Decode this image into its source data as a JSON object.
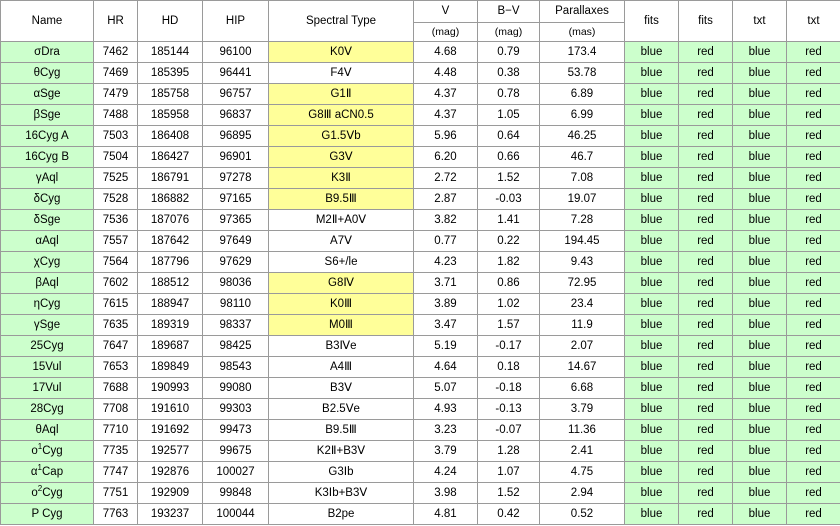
{
  "headers": {
    "name": "Name",
    "hr": "HR",
    "hd": "HD",
    "hip": "HIP",
    "spectral_type": "Spectral Type",
    "v": "V",
    "b_v": "B−V",
    "parallaxes": "Parallaxes",
    "fits_blue": "fits",
    "fits_red": "fits",
    "txt_blue": "txt",
    "txt_red": "txt",
    "v_unit": "(mag)",
    "b_v_unit": "(mag)",
    "parallaxes_unit": "(mas)"
  },
  "colors": {
    "name_bg": "#ccffcc",
    "spectral_highlight": "#ffff99",
    "link_bg": "#ccffcc",
    "grid": "#9a9a9a"
  },
  "rows": [
    {
      "greek": "σ",
      "name": "Dra",
      "sup": "",
      "hr": "7462",
      "hd": "185144",
      "hip": "96100",
      "spectral_type": "K0Ⅴ",
      "highlight": true,
      "v": "4.68",
      "b_v": "0.79",
      "parallax": "173.4",
      "fits_blue": "blue",
      "fits_red": "red",
      "txt_blue": "blue",
      "txt_red": "red"
    },
    {
      "greek": "θ",
      "name": "Cyg",
      "sup": "",
      "hr": "7469",
      "hd": "185395",
      "hip": "96441",
      "spectral_type": "F4Ⅴ",
      "highlight": false,
      "v": "4.48",
      "b_v": "0.38",
      "parallax": "53.78",
      "fits_blue": "blue",
      "fits_red": "red",
      "txt_blue": "blue",
      "txt_red": "red"
    },
    {
      "greek": "α",
      "name": "Sge",
      "sup": "",
      "hr": "7479",
      "hd": "185758",
      "hip": "96757",
      "spectral_type": "G1Ⅱ",
      "highlight": true,
      "v": "4.37",
      "b_v": "0.78",
      "parallax": "6.89",
      "fits_blue": "blue",
      "fits_red": "red",
      "txt_blue": "blue",
      "txt_red": "red"
    },
    {
      "greek": "β",
      "name": "Sge",
      "sup": "",
      "hr": "7488",
      "hd": "185958",
      "hip": "96837",
      "spectral_type": "G8Ⅲ aCN0.5",
      "highlight": true,
      "v": "4.37",
      "b_v": "1.05",
      "parallax": "6.99",
      "fits_blue": "blue",
      "fits_red": "red",
      "txt_blue": "blue",
      "txt_red": "red"
    },
    {
      "greek": "",
      "name": "16Cyg A",
      "sup": "",
      "hr": "7503",
      "hd": "186408",
      "hip": "96895",
      "spectral_type": "G1.5Ⅴb",
      "highlight": true,
      "v": "5.96",
      "b_v": "0.64",
      "parallax": "46.25",
      "fits_blue": "blue",
      "fits_red": "red",
      "txt_blue": "blue",
      "txt_red": "red"
    },
    {
      "greek": "",
      "name": "16Cyg B",
      "sup": "",
      "hr": "7504",
      "hd": "186427",
      "hip": "96901",
      "spectral_type": "G3Ⅴ",
      "highlight": true,
      "v": "6.20",
      "b_v": "0.66",
      "parallax": "46.7",
      "fits_blue": "blue",
      "fits_red": "red",
      "txt_blue": "blue",
      "txt_red": "red"
    },
    {
      "greek": "γ",
      "name": "Aql",
      "sup": "",
      "hr": "7525",
      "hd": "186791",
      "hip": "97278",
      "spectral_type": "K3Ⅱ",
      "highlight": true,
      "v": "2.72",
      "b_v": "1.52",
      "parallax": "7.08",
      "fits_blue": "blue",
      "fits_red": "red",
      "txt_blue": "blue",
      "txt_red": "red"
    },
    {
      "greek": "δ",
      "name": "Cyg",
      "sup": "",
      "hr": "7528",
      "hd": "186882",
      "hip": "97165",
      "spectral_type": "B9.5Ⅲ",
      "highlight": true,
      "v": "2.87",
      "b_v": "-0.03",
      "parallax": "19.07",
      "fits_blue": "blue",
      "fits_red": "red",
      "txt_blue": "blue",
      "txt_red": "red"
    },
    {
      "greek": "δ",
      "name": "Sge",
      "sup": "",
      "hr": "7536",
      "hd": "187076",
      "hip": "97365",
      "spectral_type": "M2Ⅱ+A0Ⅴ",
      "highlight": false,
      "v": "3.82",
      "b_v": "1.41",
      "parallax": "7.28",
      "fits_blue": "blue",
      "fits_red": "red",
      "txt_blue": "blue",
      "txt_red": "red"
    },
    {
      "greek": "α",
      "name": "Aql",
      "sup": "",
      "hr": "7557",
      "hd": "187642",
      "hip": "97649",
      "spectral_type": "A7Ⅴ",
      "highlight": false,
      "v": "0.77",
      "b_v": "0.22",
      "parallax": "194.45",
      "fits_blue": "blue",
      "fits_red": "red",
      "txt_blue": "blue",
      "txt_red": "red"
    },
    {
      "greek": "χ",
      "name": "Cyg",
      "sup": "",
      "hr": "7564",
      "hd": "187796",
      "hip": "97629",
      "spectral_type": "S6+/le",
      "highlight": false,
      "v": "4.23",
      "b_v": "1.82",
      "parallax": "9.43",
      "fits_blue": "blue",
      "fits_red": "red",
      "txt_blue": "blue",
      "txt_red": "red"
    },
    {
      "greek": "β",
      "name": "Aql",
      "sup": "",
      "hr": "7602",
      "hd": "188512",
      "hip": "98036",
      "spectral_type": "G8Ⅳ",
      "highlight": true,
      "v": "3.71",
      "b_v": "0.86",
      "parallax": "72.95",
      "fits_blue": "blue",
      "fits_red": "red",
      "txt_blue": "blue",
      "txt_red": "red"
    },
    {
      "greek": "η",
      "name": "Cyg",
      "sup": "",
      "hr": "7615",
      "hd": "188947",
      "hip": "98110",
      "spectral_type": "K0Ⅲ",
      "highlight": true,
      "v": "3.89",
      "b_v": "1.02",
      "parallax": "23.4",
      "fits_blue": "blue",
      "fits_red": "red",
      "txt_blue": "blue",
      "txt_red": "red"
    },
    {
      "greek": "γ",
      "name": "Sge",
      "sup": "",
      "hr": "7635",
      "hd": "189319",
      "hip": "98337",
      "spectral_type": "M0Ⅲ",
      "highlight": true,
      "v": "3.47",
      "b_v": "1.57",
      "parallax": "11.9",
      "fits_blue": "blue",
      "fits_red": "red",
      "txt_blue": "blue",
      "txt_red": "red"
    },
    {
      "greek": "",
      "name": "25Cyg",
      "sup": "",
      "hr": "7647",
      "hd": "189687",
      "hip": "98425",
      "spectral_type": "B3Ⅳe",
      "highlight": false,
      "v": "5.19",
      "b_v": "-0.17",
      "parallax": "2.07",
      "fits_blue": "blue",
      "fits_red": "red",
      "txt_blue": "blue",
      "txt_red": "red"
    },
    {
      "greek": "",
      "name": "15Vul",
      "sup": "",
      "hr": "7653",
      "hd": "189849",
      "hip": "98543",
      "spectral_type": "A4Ⅲ",
      "highlight": false,
      "v": "4.64",
      "b_v": "0.18",
      "parallax": "14.67",
      "fits_blue": "blue",
      "fits_red": "red",
      "txt_blue": "blue",
      "txt_red": "red"
    },
    {
      "greek": "",
      "name": "17Vul",
      "sup": "",
      "hr": "7688",
      "hd": "190993",
      "hip": "99080",
      "spectral_type": "B3Ⅴ",
      "highlight": false,
      "v": "5.07",
      "b_v": "-0.18",
      "parallax": "6.68",
      "fits_blue": "blue",
      "fits_red": "red",
      "txt_blue": "blue",
      "txt_red": "red"
    },
    {
      "greek": "",
      "name": "28Cyg",
      "sup": "",
      "hr": "7708",
      "hd": "191610",
      "hip": "99303",
      "spectral_type": "B2.5Ⅴe",
      "highlight": false,
      "v": "4.93",
      "b_v": "-0.13",
      "parallax": "3.79",
      "fits_blue": "blue",
      "fits_red": "red",
      "txt_blue": "blue",
      "txt_red": "red"
    },
    {
      "greek": "θ",
      "name": "Aql",
      "sup": "",
      "hr": "7710",
      "hd": "191692",
      "hip": "99473",
      "spectral_type": "B9.5Ⅲ",
      "highlight": false,
      "v": "3.23",
      "b_v": "-0.07",
      "parallax": "11.36",
      "fits_blue": "blue",
      "fits_red": "red",
      "txt_blue": "blue",
      "txt_red": "red"
    },
    {
      "greek": "ο",
      "name": "Cyg",
      "sup": "1",
      "hr": "7735",
      "hd": "192577",
      "hip": "99675",
      "spectral_type": "K2Ⅱ+B3Ⅴ",
      "highlight": false,
      "v": "3.79",
      "b_v": "1.28",
      "parallax": "2.41",
      "fits_blue": "blue",
      "fits_red": "red",
      "txt_blue": "blue",
      "txt_red": "red"
    },
    {
      "greek": "α",
      "name": "Cap",
      "sup": "1",
      "hr": "7747",
      "hd": "192876",
      "hip": "100027",
      "spectral_type": "G3Ⅰb",
      "highlight": false,
      "v": "4.24",
      "b_v": "1.07",
      "parallax": "4.75",
      "fits_blue": "blue",
      "fits_red": "red",
      "txt_blue": "blue",
      "txt_red": "red"
    },
    {
      "greek": "ο",
      "name": "Cyg",
      "sup": "2",
      "hr": "7751",
      "hd": "192909",
      "hip": "99848",
      "spectral_type": "K3Ⅰb+B3Ⅴ",
      "highlight": false,
      "v": "3.98",
      "b_v": "1.52",
      "parallax": "2.94",
      "fits_blue": "blue",
      "fits_red": "red",
      "txt_blue": "blue",
      "txt_red": "red"
    },
    {
      "greek": "",
      "name": "P Cyg",
      "sup": "",
      "hr": "7763",
      "hd": "193237",
      "hip": "100044",
      "spectral_type": "B2pe",
      "highlight": false,
      "v": "4.81",
      "b_v": "0.42",
      "parallax": "0.52",
      "fits_blue": "blue",
      "fits_red": "red",
      "txt_blue": "blue",
      "txt_red": "red"
    }
  ]
}
